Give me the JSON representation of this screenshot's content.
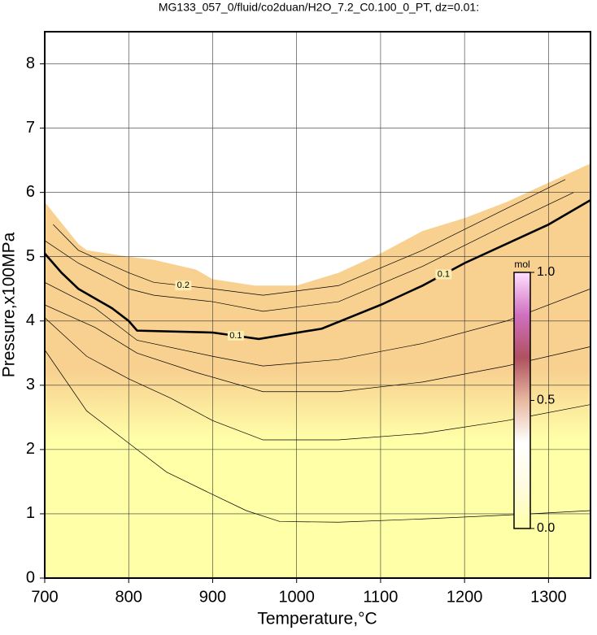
{
  "chart_data": {
    "type": "contour",
    "title": "MG133_057_0/fluid/co2duan/H2O_7.2_C0.100_0_PT, dz=0.01:",
    "x_label": "Temperature,°C",
    "y_label": "Pressure,x100MPa",
    "xlim": [
      700,
      1350
    ],
    "ylim": [
      0,
      8.5
    ],
    "xticks": [
      700,
      800,
      900,
      1000,
      1100,
      1200,
      1300
    ],
    "yticks": [
      0,
      1,
      2,
      3,
      4,
      5,
      6,
      7,
      8
    ],
    "grid": true,
    "field": {
      "x": [
        700,
        740,
        750,
        800,
        830,
        880,
        900,
        950,
        1000,
        1050,
        1100,
        1150,
        1200,
        1250,
        1300,
        1350
      ],
      "y": [
        5.85,
        5.2,
        5.1,
        5.0,
        4.95,
        4.8,
        4.65,
        4.55,
        4.55,
        4.75,
        5.05,
        5.4,
        5.6,
        5.85,
        6.15,
        6.45
      ]
    },
    "contours": [
      {
        "level": 0.1,
        "x": [
          700,
          720,
          740,
          760,
          780,
          800,
          810,
          900,
          955,
          1030,
          1100,
          1150,
          1200,
          1250,
          1300,
          1350
        ],
        "y": [
          5.05,
          4.75,
          4.5,
          4.35,
          4.2,
          4.0,
          3.85,
          3.82,
          3.72,
          3.88,
          4.25,
          4.55,
          4.9,
          5.2,
          5.5,
          5.88
        ]
      },
      {
        "level": 0.2,
        "x": [
          710,
          740,
          800,
          830,
          900,
          960,
          1050,
          1150,
          1250,
          1320
        ],
        "y": [
          5.5,
          5.1,
          4.75,
          4.6,
          4.5,
          4.4,
          4.55,
          5.1,
          5.75,
          6.2
        ]
      },
      {
        "x": [
          700,
          740,
          800,
          830,
          900,
          960,
          1050,
          1150,
          1250,
          1330
        ],
        "y": [
          5.25,
          4.9,
          4.5,
          4.4,
          4.3,
          4.15,
          4.3,
          4.85,
          5.5,
          6.0
        ]
      },
      {
        "x": [
          700,
          760,
          810,
          900,
          960,
          1050,
          1150,
          1250,
          1350
        ],
        "y": [
          4.6,
          4.2,
          3.7,
          3.45,
          3.3,
          3.4,
          3.65,
          4.0,
          4.5
        ]
      },
      {
        "x": [
          700,
          760,
          810,
          880,
          960,
          1050,
          1150,
          1250,
          1350
        ],
        "y": [
          4.25,
          3.9,
          3.5,
          3.2,
          2.9,
          2.9,
          3.05,
          3.3,
          3.6
        ]
      },
      {
        "x": [
          700,
          750,
          800,
          850,
          900,
          960,
          1050,
          1150,
          1250,
          1350
        ],
        "y": [
          4.05,
          3.45,
          3.1,
          2.8,
          2.45,
          2.15,
          2.15,
          2.25,
          2.45,
          2.7
        ]
      },
      {
        "x": [
          700,
          750,
          800,
          845,
          900,
          940,
          980,
          1050,
          1150,
          1250,
          1350
        ],
        "y": [
          3.55,
          2.6,
          2.1,
          1.65,
          1.3,
          1.05,
          0.88,
          0.87,
          0.92,
          0.98,
          1.05
        ]
      }
    ],
    "colorbar": {
      "label": "mol",
      "lim": [
        0,
        1
      ],
      "ticks": [
        {
          "value": 0,
          "label": "0.0"
        },
        {
          "value": 0.5,
          "label": "0.5"
        },
        {
          "value": 1,
          "label": "1.0"
        }
      ],
      "colors": [
        "#ffffa8",
        "#fffbe0",
        "#ffffff",
        "#e8b8a0",
        "#b05060",
        "#d070c0",
        "#ffe0ff"
      ]
    }
  }
}
